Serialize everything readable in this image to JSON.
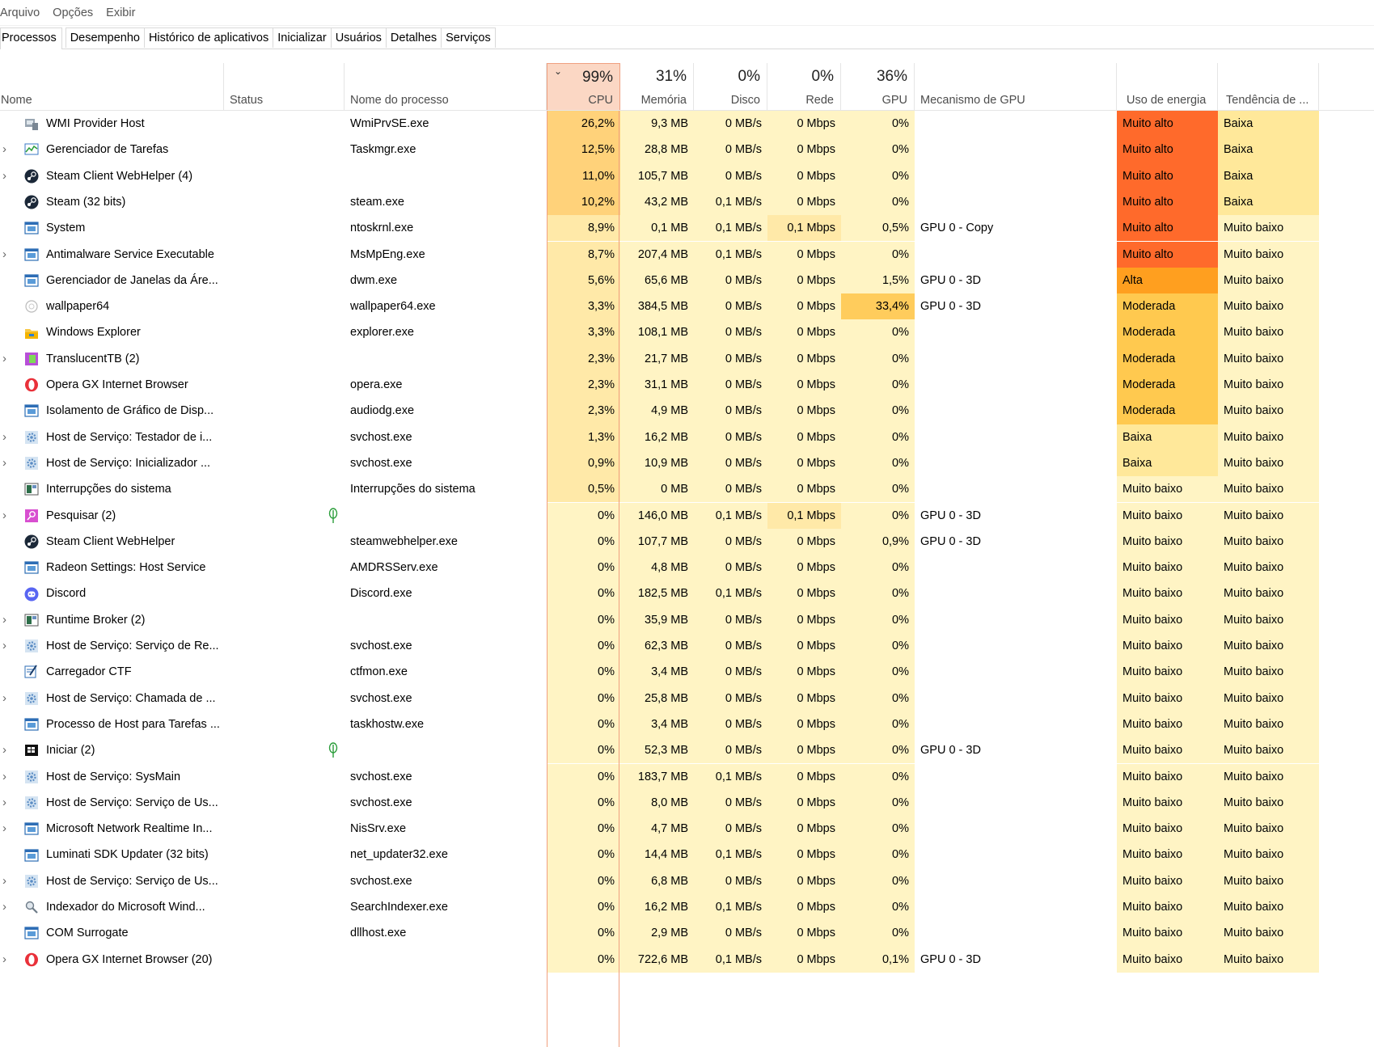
{
  "menu": [
    "Arquivo",
    "Opções",
    "Exibir"
  ],
  "tabs": [
    "Processos",
    "Desempenho",
    "Histórico de aplicativos",
    "Inicializar",
    "Usuários",
    "Detalhes",
    "Serviços"
  ],
  "header": {
    "name": "Nome",
    "status": "Status",
    "process_name": "Nome do processo",
    "cpu_pct": "99%",
    "cpu": "CPU",
    "mem_pct": "31%",
    "mem": "Memória",
    "disk_pct": "0%",
    "disk": "Disco",
    "net_pct": "0%",
    "net": "Rede",
    "gpu_pct": "36%",
    "gpu": "GPU",
    "gpu_engine": "Mecanismo de GPU",
    "power": "Uso de energia",
    "power_trend": "Tendência de ..."
  },
  "colors": {
    "heat_light": "#fff4c4",
    "heat_mid": "#ffe9a8",
    "heat_strong": "#ffd27a",
    "heat_gpu": "#ffcc5c",
    "very_high": "#ff6a2b",
    "high": "#ff9f1f",
    "moderate": "#ffc94f",
    "low": "#ffe89a",
    "very_low": "#fff4c4"
  },
  "rows": [
    {
      "name": "WMI Provider Host",
      "icon": "wmi-icon",
      "exp": false,
      "status": "",
      "proc": "WmiPrvSE.exe",
      "cpu": "26,2%",
      "mem": "9,3 MB",
      "disk": "0 MB/s",
      "net": "0 Mbps",
      "gpu": "0%",
      "engine": "",
      "power": "Muito alto",
      "trend": "Baixa",
      "leaf": false
    },
    {
      "name": "Gerenciador de Tarefas",
      "icon": "taskmgr-icon",
      "exp": true,
      "status": "",
      "proc": "Taskmgr.exe",
      "cpu": "12,5%",
      "mem": "28,8 MB",
      "disk": "0 MB/s",
      "net": "0 Mbps",
      "gpu": "0%",
      "engine": "",
      "power": "Muito alto",
      "trend": "Baixa",
      "leaf": false
    },
    {
      "name": "Steam Client WebHelper (4)",
      "icon": "steam-icon",
      "exp": true,
      "status": "",
      "proc": "",
      "cpu": "11,0%",
      "mem": "105,7 MB",
      "disk": "0 MB/s",
      "net": "0 Mbps",
      "gpu": "0%",
      "engine": "",
      "power": "Muito alto",
      "trend": "Baixa",
      "leaf": false
    },
    {
      "name": "Steam (32 bits)",
      "icon": "steam-icon",
      "exp": false,
      "status": "",
      "proc": "steam.exe",
      "cpu": "10,2%",
      "mem": "43,2 MB",
      "disk": "0,1 MB/s",
      "net": "0 Mbps",
      "gpu": "0%",
      "engine": "",
      "power": "Muito alto",
      "trend": "Baixa",
      "leaf": false
    },
    {
      "name": "System",
      "icon": "window-icon",
      "exp": false,
      "status": "",
      "proc": "ntoskrnl.exe",
      "cpu": "8,9%",
      "mem": "0,1 MB",
      "disk": "0,1 MB/s",
      "net": "0,1 Mbps",
      "gpu": "0,5%",
      "engine": "GPU 0 - Copy",
      "power": "Muito alto",
      "trend": "Muito baixo",
      "leaf": false
    },
    {
      "name": "Antimalware Service Executable",
      "icon": "window-icon",
      "exp": true,
      "status": "",
      "proc": "MsMpEng.exe",
      "cpu": "8,7%",
      "mem": "207,4 MB",
      "disk": "0,1 MB/s",
      "net": "0 Mbps",
      "gpu": "0%",
      "engine": "",
      "power": "Muito alto",
      "trend": "Muito baixo",
      "leaf": false
    },
    {
      "name": "Gerenciador de Janelas da Áre...",
      "icon": "window-icon",
      "exp": false,
      "status": "",
      "proc": "dwm.exe",
      "cpu": "5,6%",
      "mem": "65,6 MB",
      "disk": "0 MB/s",
      "net": "0 Mbps",
      "gpu": "1,5%",
      "engine": "GPU 0 - 3D",
      "power": "Alta",
      "trend": "Muito baixo",
      "leaf": false
    },
    {
      "name": "wallpaper64",
      "icon": "wallpaper-icon",
      "exp": false,
      "status": "",
      "proc": "wallpaper64.exe",
      "cpu": "3,3%",
      "mem": "384,5 MB",
      "disk": "0 MB/s",
      "net": "0 Mbps",
      "gpu": "33,4%",
      "engine": "GPU 0 - 3D",
      "power": "Moderada",
      "trend": "Muito baixo",
      "leaf": false
    },
    {
      "name": "Windows Explorer",
      "icon": "folder-icon",
      "exp": false,
      "status": "",
      "proc": "explorer.exe",
      "cpu": "3,3%",
      "mem": "108,1 MB",
      "disk": "0 MB/s",
      "net": "0 Mbps",
      "gpu": "0%",
      "engine": "",
      "power": "Moderada",
      "trend": "Muito baixo",
      "leaf": false
    },
    {
      "name": "TranslucentTB (2)",
      "icon": "translucenttb-icon",
      "exp": true,
      "status": "",
      "proc": "",
      "cpu": "2,3%",
      "mem": "21,7 MB",
      "disk": "0 MB/s",
      "net": "0 Mbps",
      "gpu": "0%",
      "engine": "",
      "power": "Moderada",
      "trend": "Muito baixo",
      "leaf": false
    },
    {
      "name": "Opera GX Internet Browser",
      "icon": "opera-icon",
      "exp": false,
      "status": "",
      "proc": "opera.exe",
      "cpu": "2,3%",
      "mem": "31,1 MB",
      "disk": "0 MB/s",
      "net": "0 Mbps",
      "gpu": "0%",
      "engine": "",
      "power": "Moderada",
      "trend": "Muito baixo",
      "leaf": false
    },
    {
      "name": "Isolamento de Gráfico de Disp...",
      "icon": "window-icon",
      "exp": false,
      "status": "",
      "proc": "audiodg.exe",
      "cpu": "2,3%",
      "mem": "4,9 MB",
      "disk": "0 MB/s",
      "net": "0 Mbps",
      "gpu": "0%",
      "engine": "",
      "power": "Moderada",
      "trend": "Muito baixo",
      "leaf": false
    },
    {
      "name": "Host de Serviço: Testador de i...",
      "icon": "gear-icon",
      "exp": true,
      "status": "",
      "proc": "svchost.exe",
      "cpu": "1,3%",
      "mem": "16,2 MB",
      "disk": "0 MB/s",
      "net": "0 Mbps",
      "gpu": "0%",
      "engine": "",
      "power": "Baixa",
      "trend": "Muito baixo",
      "leaf": false
    },
    {
      "name": "Host de Serviço: Inicializador ...",
      "icon": "gear-icon",
      "exp": true,
      "status": "",
      "proc": "svchost.exe",
      "cpu": "0,9%",
      "mem": "10,9 MB",
      "disk": "0 MB/s",
      "net": "0 Mbps",
      "gpu": "0%",
      "engine": "",
      "power": "Baixa",
      "trend": "Muito baixo",
      "leaf": false
    },
    {
      "name": "Interrupções do sistema",
      "icon": "chip-icon",
      "exp": false,
      "status": "",
      "proc": "Interrupções do sistema",
      "cpu": "0,5%",
      "mem": "0 MB",
      "disk": "0 MB/s",
      "net": "0 Mbps",
      "gpu": "0%",
      "engine": "",
      "power": "Muito baixo",
      "trend": "Muito baixo",
      "leaf": false
    },
    {
      "name": "Pesquisar (2)",
      "icon": "search-app-icon",
      "exp": true,
      "status": "",
      "proc": "",
      "cpu": "0%",
      "mem": "146,0 MB",
      "disk": "0,1 MB/s",
      "net": "0,1 Mbps",
      "gpu": "0%",
      "engine": "GPU 0 - 3D",
      "power": "Muito baixo",
      "trend": "Muito baixo",
      "leaf": true
    },
    {
      "name": "Steam Client WebHelper",
      "icon": "steam-icon",
      "exp": false,
      "status": "",
      "proc": "steamwebhelper.exe",
      "cpu": "0%",
      "mem": "107,7 MB",
      "disk": "0 MB/s",
      "net": "0 Mbps",
      "gpu": "0,9%",
      "engine": "GPU 0 - 3D",
      "power": "Muito baixo",
      "trend": "Muito baixo",
      "leaf": false
    },
    {
      "name": "Radeon Settings: Host Service",
      "icon": "window-icon",
      "exp": false,
      "status": "",
      "proc": "AMDRSServ.exe",
      "cpu": "0%",
      "mem": "4,8 MB",
      "disk": "0 MB/s",
      "net": "0 Mbps",
      "gpu": "0%",
      "engine": "",
      "power": "Muito baixo",
      "trend": "Muito baixo",
      "leaf": false
    },
    {
      "name": "Discord",
      "icon": "discord-icon",
      "exp": false,
      "status": "",
      "proc": "Discord.exe",
      "cpu": "0%",
      "mem": "182,5 MB",
      "disk": "0,1 MB/s",
      "net": "0 Mbps",
      "gpu": "0%",
      "engine": "",
      "power": "Muito baixo",
      "trend": "Muito baixo",
      "leaf": false
    },
    {
      "name": "Runtime Broker (2)",
      "icon": "chip-icon",
      "exp": true,
      "status": "",
      "proc": "",
      "cpu": "0%",
      "mem": "35,9 MB",
      "disk": "0 MB/s",
      "net": "0 Mbps",
      "gpu": "0%",
      "engine": "",
      "power": "Muito baixo",
      "trend": "Muito baixo",
      "leaf": false
    },
    {
      "name": "Host de Serviço: Serviço de Re...",
      "icon": "gear-icon",
      "exp": true,
      "status": "",
      "proc": "svchost.exe",
      "cpu": "0%",
      "mem": "62,3 MB",
      "disk": "0 MB/s",
      "net": "0 Mbps",
      "gpu": "0%",
      "engine": "",
      "power": "Muito baixo",
      "trend": "Muito baixo",
      "leaf": false
    },
    {
      "name": "Carregador CTF",
      "icon": "ctf-icon",
      "exp": false,
      "status": "",
      "proc": "ctfmon.exe",
      "cpu": "0%",
      "mem": "3,4 MB",
      "disk": "0 MB/s",
      "net": "0 Mbps",
      "gpu": "0%",
      "engine": "",
      "power": "Muito baixo",
      "trend": "Muito baixo",
      "leaf": false
    },
    {
      "name": "Host de Serviço: Chamada de ...",
      "icon": "gear-icon",
      "exp": true,
      "status": "",
      "proc": "svchost.exe",
      "cpu": "0%",
      "mem": "25,8 MB",
      "disk": "0 MB/s",
      "net": "0 Mbps",
      "gpu": "0%",
      "engine": "",
      "power": "Muito baixo",
      "trend": "Muito baixo",
      "leaf": false
    },
    {
      "name": "Processo de Host para Tarefas ...",
      "icon": "window-icon",
      "exp": false,
      "status": "",
      "proc": "taskhostw.exe",
      "cpu": "0%",
      "mem": "3,4 MB",
      "disk": "0 MB/s",
      "net": "0 Mbps",
      "gpu": "0%",
      "engine": "",
      "power": "Muito baixo",
      "trend": "Muito baixo",
      "leaf": false
    },
    {
      "name": "Iniciar (2)",
      "icon": "start-icon",
      "exp": true,
      "status": "",
      "proc": "",
      "cpu": "0%",
      "mem": "52,3 MB",
      "disk": "0 MB/s",
      "net": "0 Mbps",
      "gpu": "0%",
      "engine": "GPU 0 - 3D",
      "power": "Muito baixo",
      "trend": "Muito baixo",
      "leaf": true
    },
    {
      "name": "Host de Serviço: SysMain",
      "icon": "gear-icon",
      "exp": true,
      "status": "",
      "proc": "svchost.exe",
      "cpu": "0%",
      "mem": "183,7 MB",
      "disk": "0,1 MB/s",
      "net": "0 Mbps",
      "gpu": "0%",
      "engine": "",
      "power": "Muito baixo",
      "trend": "Muito baixo",
      "leaf": false
    },
    {
      "name": "Host de Serviço: Serviço de Us...",
      "icon": "gear-icon",
      "exp": true,
      "status": "",
      "proc": "svchost.exe",
      "cpu": "0%",
      "mem": "8,0 MB",
      "disk": "0 MB/s",
      "net": "0 Mbps",
      "gpu": "0%",
      "engine": "",
      "power": "Muito baixo",
      "trend": "Muito baixo",
      "leaf": false
    },
    {
      "name": "Microsoft Network Realtime In...",
      "icon": "window-icon",
      "exp": true,
      "status": "",
      "proc": "NisSrv.exe",
      "cpu": "0%",
      "mem": "4,7 MB",
      "disk": "0 MB/s",
      "net": "0 Mbps",
      "gpu": "0%",
      "engine": "",
      "power": "Muito baixo",
      "trend": "Muito baixo",
      "leaf": false
    },
    {
      "name": "Luminati SDK Updater (32 bits)",
      "icon": "window-icon",
      "exp": false,
      "status": "",
      "proc": "net_updater32.exe",
      "cpu": "0%",
      "mem": "14,4 MB",
      "disk": "0,1 MB/s",
      "net": "0 Mbps",
      "gpu": "0%",
      "engine": "",
      "power": "Muito baixo",
      "trend": "Muito baixo",
      "leaf": false
    },
    {
      "name": "Host de Serviço: Serviço de Us...",
      "icon": "gear-icon",
      "exp": true,
      "status": "",
      "proc": "svchost.exe",
      "cpu": "0%",
      "mem": "6,8 MB",
      "disk": "0 MB/s",
      "net": "0 Mbps",
      "gpu": "0%",
      "engine": "",
      "power": "Muito baixo",
      "trend": "Muito baixo",
      "leaf": false
    },
    {
      "name": "Indexador do Microsoft Wind...",
      "icon": "indexer-icon",
      "exp": true,
      "status": "",
      "proc": "SearchIndexer.exe",
      "cpu": "0%",
      "mem": "16,2 MB",
      "disk": "0,1 MB/s",
      "net": "0 Mbps",
      "gpu": "0%",
      "engine": "",
      "power": "Muito baixo",
      "trend": "Muito baixo",
      "leaf": false
    },
    {
      "name": "COM Surrogate",
      "icon": "window-icon",
      "exp": false,
      "status": "",
      "proc": "dllhost.exe",
      "cpu": "0%",
      "mem": "2,9 MB",
      "disk": "0 MB/s",
      "net": "0 Mbps",
      "gpu": "0%",
      "engine": "",
      "power": "Muito baixo",
      "trend": "Muito baixo",
      "leaf": false
    },
    {
      "name": "Opera GX Internet Browser (20)",
      "icon": "opera-icon",
      "exp": true,
      "status": "",
      "proc": "",
      "cpu": "0%",
      "mem": "722,6 MB",
      "disk": "0,1 MB/s",
      "net": "0 Mbps",
      "gpu": "0,1%",
      "engine": "GPU 0 - 3D",
      "power": "Muito baixo",
      "trend": "Muito baixo",
      "leaf": false
    }
  ]
}
